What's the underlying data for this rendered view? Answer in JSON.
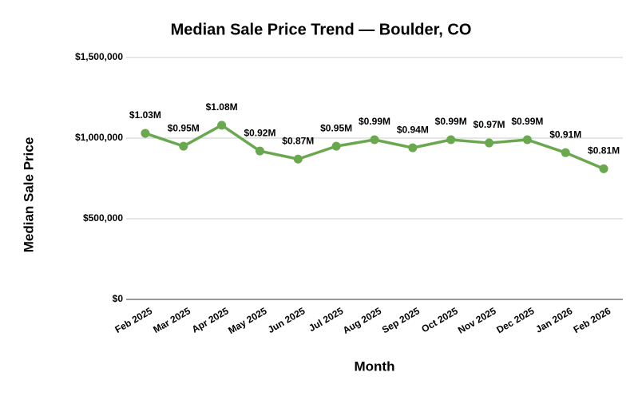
{
  "chart_data": {
    "type": "line",
    "title": "Median Sale Price Trend — Boulder, CO",
    "x_label": "Month",
    "y_label": "Median Sale Price",
    "categories": [
      "Feb 2025",
      "Mar 2025",
      "Apr 2025",
      "May 2025",
      "Jun 2025",
      "Jul 2025",
      "Aug 2025",
      "Sep 2025",
      "Oct 2025",
      "Nov 2025",
      "Dec 2025",
      "Jan 2026",
      "Feb 2026"
    ],
    "series": [
      {
        "name": "Median Sale Price",
        "color": "#6aa84f",
        "values": [
          1030000,
          950000,
          1080000,
          920000,
          870000,
          950000,
          990000,
          940000,
          990000,
          970000,
          990000,
          910000,
          810000
        ],
        "value_labels": [
          "$1.03M",
          "$0.95M",
          "$1.08M",
          "$0.92M",
          "$0.87M",
          "$0.95M",
          "$0.99M",
          "$0.94M",
          "$0.99M",
          "$0.97M",
          "$0.99M",
          "$0.91M",
          "$0.81M"
        ]
      }
    ],
    "ylim": [
      0,
      1500000
    ],
    "yticks": [
      {
        "value": 0,
        "label": "$0"
      },
      {
        "value": 500000,
        "label": "$500,000"
      },
      {
        "value": 1000000,
        "label": "$1,000,000"
      },
      {
        "value": 1500000,
        "label": "$1,500,000"
      }
    ],
    "grid": true
  }
}
